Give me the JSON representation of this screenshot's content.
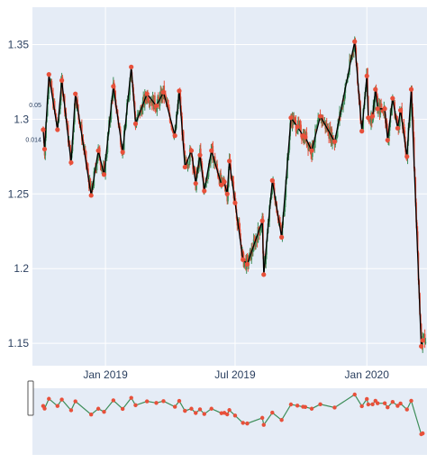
{
  "chart_data": {
    "type": "line",
    "title": "",
    "xlabel": "",
    "ylabel": "",
    "x_ticks": [
      "Jan 2019",
      "Jul 2019",
      "Jan 2020"
    ],
    "y_ticks": [
      "1.15",
      "1.2",
      "1.25",
      "1.3",
      "1.35"
    ],
    "ylim": [
      1.135,
      1.375
    ],
    "xlim": [
      "2018-09-21",
      "2020-03-25"
    ],
    "annotations": [
      "0.05",
      "0.014"
    ],
    "series": [
      {
        "kind": "zigzag",
        "line_color": "#000000",
        "marker_color": "#e8503a",
        "x": [
          "2018-10-06",
          "2018-10-08",
          "2018-10-14",
          "2018-10-26",
          "2018-11-01",
          "2018-11-14",
          "2018-11-20",
          "2018-12-12",
          "2018-12-22",
          "2018-12-30",
          "2019-01-12",
          "2019-01-25",
          "2019-02-06",
          "2019-02-12",
          "2019-02-28",
          "2019-03-13",
          "2019-03-23",
          "2019-04-08",
          "2019-04-14",
          "2019-04-22",
          "2019-05-01",
          "2019-05-07",
          "2019-05-13",
          "2019-05-19",
          "2019-05-29",
          "2019-06-12",
          "2019-06-16",
          "2019-06-20",
          "2019-06-23",
          "2019-07-01",
          "2019-07-12",
          "2019-07-18",
          "2019-08-08",
          "2019-08-10",
          "2019-08-22",
          "2019-09-04",
          "2019-09-17",
          "2019-09-26",
          "2019-10-04",
          "2019-10-07",
          "2019-10-16",
          "2019-10-28",
          "2019-11-17",
          "2019-12-15",
          "2019-12-25",
          "2020-01-01",
          "2020-01-03",
          "2020-01-09",
          "2020-01-13",
          "2020-01-16",
          "2020-01-26",
          "2020-01-30",
          "2020-02-06",
          "2020-02-13",
          "2020-02-17",
          "2020-02-26",
          "2020-03-03",
          "2020-03-17",
          "2020-03-19"
        ],
        "y": [
          1.293,
          1.28,
          1.33,
          1.293,
          1.326,
          1.271,
          1.317,
          1.249,
          1.279,
          1.263,
          1.322,
          1.278,
          1.335,
          1.297,
          1.317,
          1.309,
          1.318,
          1.289,
          1.319,
          1.268,
          1.279,
          1.257,
          1.276,
          1.252,
          1.279,
          1.256,
          1.258,
          1.25,
          1.272,
          1.244,
          1.206,
          1.203,
          1.232,
          1.196,
          1.259,
          1.221,
          1.301,
          1.295,
          1.289,
          1.288,
          1.279,
          1.302,
          1.285,
          1.352,
          1.292,
          1.329,
          1.301,
          1.302,
          1.32,
          1.307,
          1.307,
          1.286,
          1.314,
          1.294,
          1.306,
          1.275,
          1.32,
          1.148,
          1.152
        ]
      },
      {
        "kind": "candles",
        "up_color": "#3e8e5a",
        "down_color": "#e8503a"
      }
    ]
  }
}
